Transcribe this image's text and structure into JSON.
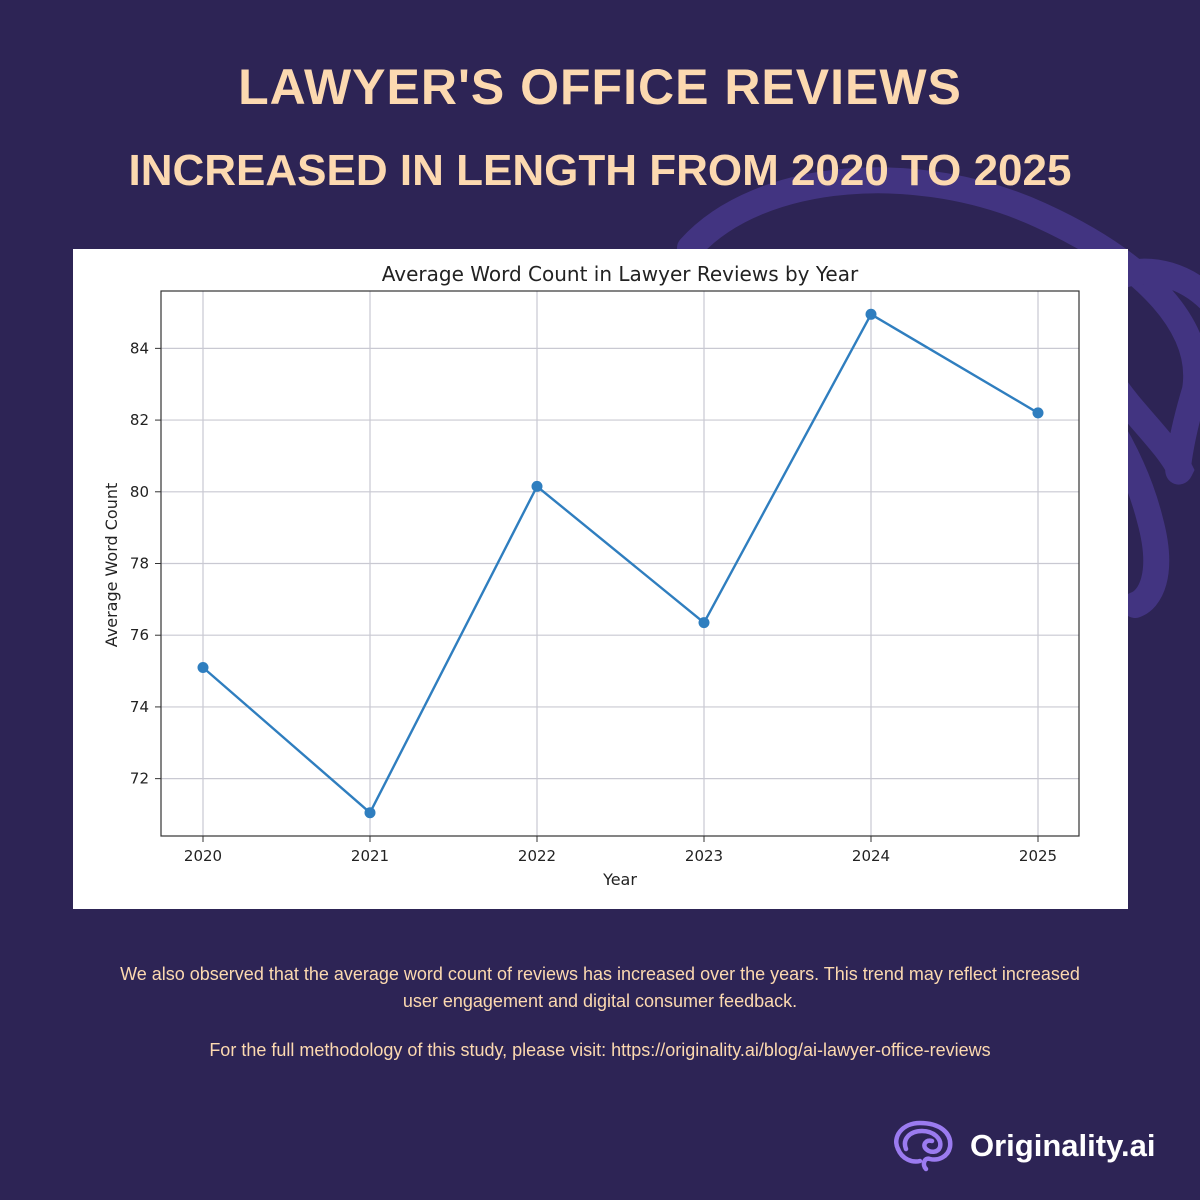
{
  "header": {
    "title": "LAWYER'S OFFICE REVIEWS",
    "subtitle": "INCREASED IN LENGTH FROM 2020 TO 2025"
  },
  "chart_data": {
    "type": "line",
    "title": "Average Word Count in Lawyer Reviews by Year",
    "xlabel": "Year",
    "ylabel": "Average Word Count",
    "categories": [
      "2020",
      "2021",
      "2022",
      "2023",
      "2024",
      "2025"
    ],
    "values": [
      75.1,
      71.05,
      80.15,
      76.35,
      84.95,
      82.2
    ],
    "yticks": [
      72,
      74,
      76,
      78,
      80,
      82,
      84
    ],
    "ylim": [
      70.4,
      85.6
    ],
    "grid": true,
    "line_color": "#2f7ebf",
    "marker": "circle"
  },
  "footer": {
    "description": "We also observed that the average word count of reviews has increased over the years. This trend may reflect increased user engagement and digital consumer feedback.",
    "methodology": "For the full methodology of this study, please visit: https://originality.ai/blog/ai-lawyer-office-reviews"
  },
  "brand": {
    "name": "Originality.ai",
    "icon": "brain-icon"
  },
  "colors": {
    "background": "#2d2455",
    "accent_text": "#fcd9b0",
    "swirl": "#4a3a8c"
  }
}
